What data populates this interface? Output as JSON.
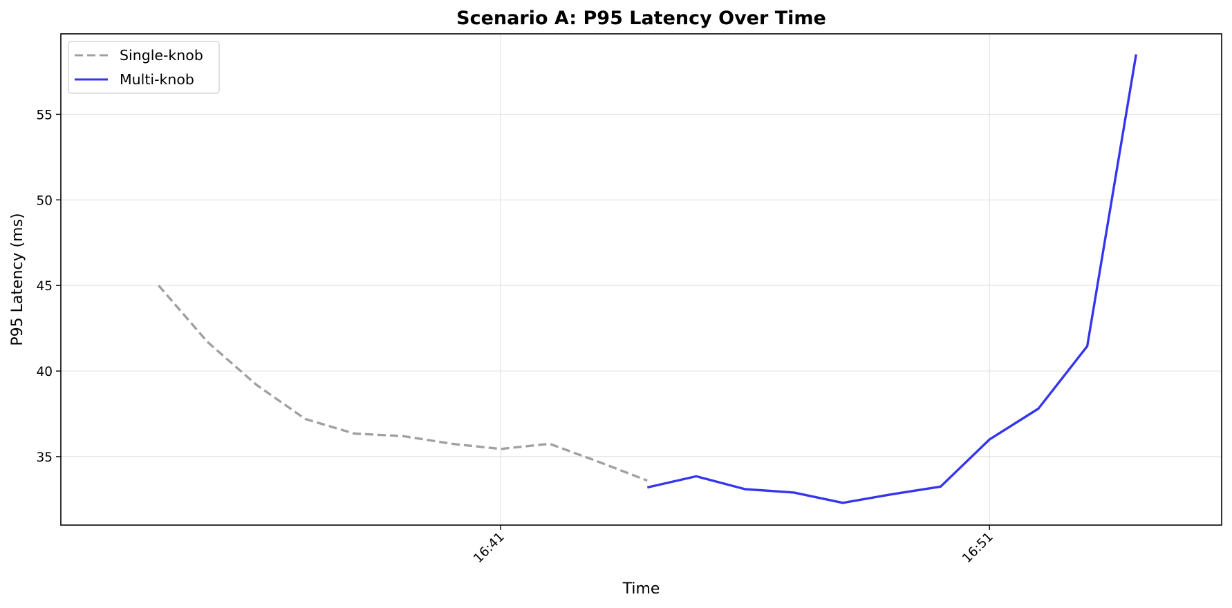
{
  "chart_data": {
    "type": "line",
    "title": "Scenario A: P95 Latency Over Time",
    "xlabel": "Time",
    "ylabel": "P95 Latency (ms)",
    "x_unit": "minutes",
    "xlim": [
      "16:32:00",
      "16:55:45"
    ],
    "ylim": [
      31,
      59.7
    ],
    "x_ticks": [
      {
        "label": "16:41",
        "value": "16:41:00"
      },
      {
        "label": "16:51",
        "value": "16:51:00"
      }
    ],
    "y_ticks": [
      35,
      40,
      45,
      50,
      55
    ],
    "grid": true,
    "legend_position": "upper-left",
    "series": [
      {
        "name": "Single-knob",
        "color": "#a0a0a0",
        "style": "dashed",
        "points": [
          {
            "x": "16:34:00",
            "y": 45.0
          },
          {
            "x": "16:35:00",
            "y": 41.7
          },
          {
            "x": "16:36:00",
            "y": 39.2
          },
          {
            "x": "16:37:00",
            "y": 37.2
          },
          {
            "x": "16:38:00",
            "y": 36.35
          },
          {
            "x": "16:39:00",
            "y": 36.2
          },
          {
            "x": "16:40:00",
            "y": 35.75
          },
          {
            "x": "16:41:00",
            "y": 35.45
          },
          {
            "x": "16:42:00",
            "y": 35.75
          },
          {
            "x": "16:43:00",
            "y": 34.7
          },
          {
            "x": "16:44:00",
            "y": 33.6
          }
        ]
      },
      {
        "name": "Multi-knob",
        "color": "#3535ee",
        "style": "solid",
        "points": [
          {
            "x": "16:44:00",
            "y": 33.2
          },
          {
            "x": "16:45:00",
            "y": 33.85
          },
          {
            "x": "16:46:00",
            "y": 33.1
          },
          {
            "x": "16:47:00",
            "y": 32.9
          },
          {
            "x": "16:48:00",
            "y": 32.3
          },
          {
            "x": "16:49:00",
            "y": 32.8
          },
          {
            "x": "16:50:00",
            "y": 33.25
          },
          {
            "x": "16:51:00",
            "y": 36.0
          },
          {
            "x": "16:52:00",
            "y": 37.8
          },
          {
            "x": "16:53:00",
            "y": 41.45
          },
          {
            "x": "16:54:00",
            "y": 58.5
          }
        ]
      }
    ]
  }
}
